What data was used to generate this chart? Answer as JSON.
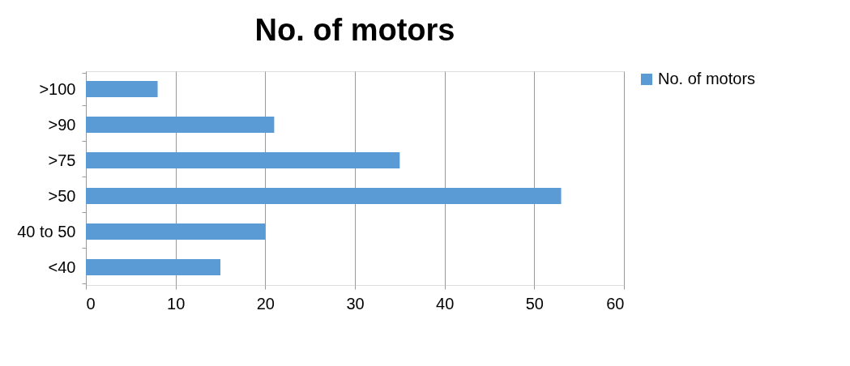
{
  "chart_data": {
    "type": "bar",
    "orientation": "horizontal",
    "title": "No. of motors",
    "categories": [
      ">100",
      ">90",
      ">75",
      ">50",
      "40 to 50",
      "<40"
    ],
    "series": [
      {
        "name": "No. of motors",
        "color": "#5b9bd5",
        "values": [
          8,
          21,
          35,
          53,
          20,
          15
        ]
      }
    ],
    "xlim": [
      0,
      60
    ],
    "xticks": [
      0,
      10,
      20,
      30,
      40,
      50,
      60
    ],
    "grid": "x",
    "legend": "right"
  }
}
